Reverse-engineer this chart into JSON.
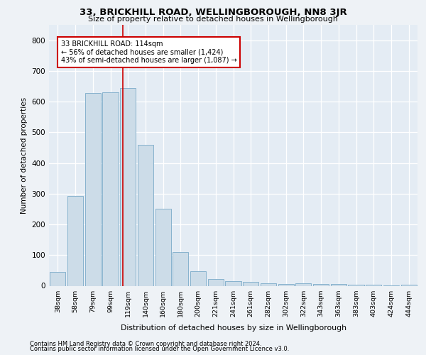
{
  "title": "33, BRICKHILL ROAD, WELLINGBOROUGH, NN8 3JR",
  "subtitle": "Size of property relative to detached houses in Wellingborough",
  "xlabel": "Distribution of detached houses by size in Wellingborough",
  "ylabel": "Number of detached properties",
  "categories": [
    "38sqm",
    "58sqm",
    "79sqm",
    "99sqm",
    "119sqm",
    "140sqm",
    "160sqm",
    "180sqm",
    "200sqm",
    "221sqm",
    "241sqm",
    "261sqm",
    "282sqm",
    "302sqm",
    "322sqm",
    "343sqm",
    "363sqm",
    "383sqm",
    "403sqm",
    "424sqm",
    "444sqm"
  ],
  "values": [
    45,
    293,
    628,
    630,
    645,
    460,
    250,
    110,
    47,
    22,
    15,
    13,
    8,
    5,
    8,
    5,
    5,
    4,
    4,
    1,
    4
  ],
  "bar_color": "#ccdce8",
  "bar_edge_color": "#7aaac8",
  "red_line_x": 3.7,
  "annotation_text_line1": "33 BRICKHILL ROAD: 114sqm",
  "annotation_text_line2": "← 56% of detached houses are smaller (1,424)",
  "annotation_text_line3": "43% of semi-detached houses are larger (1,087) →",
  "ylim": [
    0,
    850
  ],
  "yticks": [
    0,
    100,
    200,
    300,
    400,
    500,
    600,
    700,
    800
  ],
  "footer_line1": "Contains HM Land Registry data © Crown copyright and database right 2024.",
  "footer_line2": "Contains public sector information licensed under the Open Government Licence v3.0.",
  "background_color": "#eef2f6",
  "plot_background_color": "#e4ecf4",
  "grid_color": "#ffffff"
}
